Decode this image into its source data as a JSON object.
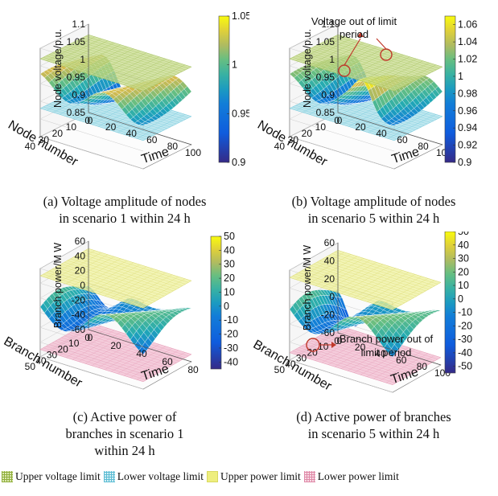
{
  "chart_data": [
    {
      "id": "a",
      "type": "surface3d",
      "caption": [
        "(a) Voltage amplitude of nodes",
        "in scenario 1 within 24 h"
      ],
      "zlabel": "Node voltage/p.u.",
      "xlabel": "Node number",
      "ylabel": "Time",
      "z_ticks": [
        "1.1",
        "1.05",
        "1",
        "0.95",
        "0.9",
        "0.85"
      ],
      "x_ticks": [
        "40",
        "30",
        "20",
        "10",
        "0"
      ],
      "y_ticks": [
        "0",
        "20",
        "40",
        "60",
        "80",
        "100"
      ],
      "zlim": [
        0.85,
        1.1
      ],
      "upper_limit": 1.07,
      "lower_limit": 0.93,
      "colorbar": {
        "min": 0.9,
        "max": 1.05,
        "ticks": [
          "1.05",
          "1",
          "0.95",
          "0.9"
        ],
        "tick_values": [
          1.05,
          1.0,
          0.95,
          0.9
        ]
      },
      "annotation": ""
    },
    {
      "id": "b",
      "type": "surface3d",
      "caption": [
        "(b) Voltage amplitude of nodes",
        "in scenario 5 within 24 h"
      ],
      "zlabel": "Node voltage/p.u.",
      "xlabel": "Node number",
      "ylabel": "Time",
      "z_ticks": [
        "1.1",
        "1.05",
        "1",
        "0.95",
        "0.9",
        "0.85"
      ],
      "x_ticks": [
        "40",
        "30",
        "20",
        "10",
        "0"
      ],
      "y_ticks": [
        "0",
        "20",
        "40",
        "60",
        "80",
        "100"
      ],
      "zlim": [
        0.85,
        1.1
      ],
      "upper_limit": 1.07,
      "lower_limit": 0.93,
      "colorbar": {
        "min": 0.9,
        "max": 1.07,
        "ticks": [
          "1.06",
          "1.04",
          "1.02",
          "1",
          "0.98",
          "0.96",
          "0.94",
          "0.92",
          "0.9"
        ],
        "tick_values": [
          1.06,
          1.04,
          1.02,
          1.0,
          0.98,
          0.96,
          0.94,
          0.92,
          0.9
        ]
      },
      "annotation": "Voltage out of limit period"
    },
    {
      "id": "c",
      "type": "surface3d",
      "caption": [
        "(c) Active power of",
        "branches in scenario 1",
        "within 24 h"
      ],
      "zlabel": "Branch power/M W",
      "xlabel": "Branch number",
      "ylabel": "Time",
      "z_ticks": [
        "60",
        "40",
        "20",
        "0",
        "-20",
        "-40",
        "-60"
      ],
      "x_ticks": [
        "50",
        "40",
        "30",
        "20",
        "10",
        "0"
      ],
      "y_ticks": [
        "0",
        "20",
        "40",
        "60",
        "80"
      ],
      "zlim": [
        -60,
        60
      ],
      "upper_limit": 50,
      "lower_limit": -50,
      "colorbar": {
        "min": -45,
        "max": 50,
        "ticks": [
          "50",
          "40",
          "30",
          "20",
          "10",
          "0",
          "-10",
          "-20",
          "-30",
          "-40"
        ],
        "tick_values": [
          50,
          40,
          30,
          20,
          10,
          0,
          -10,
          -20,
          -30,
          -40
        ]
      },
      "annotation": ""
    },
    {
      "id": "d",
      "type": "surface3d",
      "caption": [
        "(d) Active power of branches",
        "in scenario 5 within 24 h"
      ],
      "zlabel": "Branch power/M W",
      "xlabel": "Branch number",
      "ylabel": "Time",
      "z_ticks": [
        "60",
        "40",
        "20",
        "0",
        "-20",
        "-60"
      ],
      "x_ticks": [
        "50",
        "40",
        "30",
        "20",
        "10",
        "0"
      ],
      "y_ticks": [
        "0",
        "20",
        "40",
        "60",
        "80",
        "100"
      ],
      "zlim": [
        -60,
        60
      ],
      "upper_limit": 50,
      "lower_limit": -50,
      "colorbar": {
        "min": -55,
        "max": 50,
        "ticks": [
          "50",
          "40",
          "30",
          "20",
          "10",
          "0",
          "-10",
          "-20",
          "-30",
          "-40",
          "-50"
        ],
        "tick_values": [
          50,
          40,
          30,
          20,
          10,
          0,
          -10,
          -20,
          -30,
          -40,
          -50
        ]
      },
      "annotation": "Branch power out of limit period"
    }
  ],
  "legend": [
    {
      "label": "Upper voltage limit",
      "color": "#b7cf72",
      "pattern": "grid"
    },
    {
      "label": "Lower voltage limit",
      "color": "#93d6e3",
      "pattern": "grid"
    },
    {
      "label": "Upper power limit",
      "color": "#ecec86",
      "pattern": "fill"
    },
    {
      "label": "Lower power limit",
      "color": "#f0b4c8",
      "pattern": "grid"
    }
  ],
  "colors": {
    "upper_voltage": "#c6d98a",
    "lower_voltage": "#a8dfe9",
    "upper_power": "#eef09c",
    "lower_power": "#f2bcd0",
    "annotation": "#c0392b"
  }
}
